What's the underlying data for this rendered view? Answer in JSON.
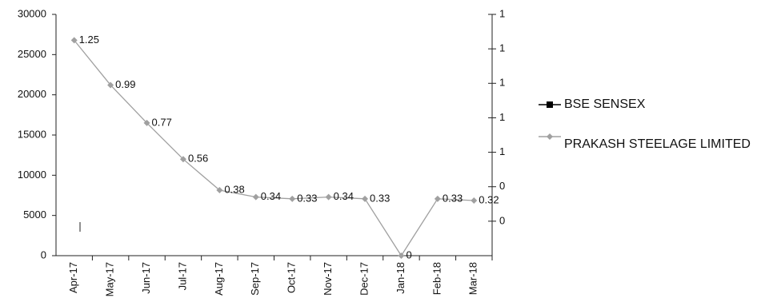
{
  "chart_data": {
    "type": "line",
    "categories": [
      "Apr-17",
      "May-17",
      "Jun-17",
      "Jul-17",
      "Aug-17",
      "Sep-17",
      "Oct-17",
      "Nov-17",
      "Dec-17",
      "Jan-18",
      "Feb-18",
      "Mar-18"
    ],
    "series": [
      {
        "name": "BSE SENSEX",
        "color": "#000000",
        "values": [
          null,
          null,
          null,
          null,
          null,
          null,
          null,
          null,
          null,
          null,
          null,
          null
        ]
      },
      {
        "name": "PRAKASH STEELAGE LIMITED",
        "color": "#a0a0a0",
        "axis": "y2",
        "values": [
          1.25,
          0.99,
          0.77,
          0.56,
          0.38,
          0.34,
          0.33,
          0.34,
          0.33,
          0,
          0.33,
          0.32
        ]
      }
    ],
    "ylim": [
      0,
      30000
    ],
    "yticks": [
      0,
      5000,
      10000,
      15000,
      20000,
      25000,
      30000
    ],
    "y2lim": [
      0,
      1.4
    ],
    "y2ticks": [
      {
        "value": 0.2,
        "label": "0"
      },
      {
        "value": 0.4,
        "label": "0"
      },
      {
        "value": 0.6,
        "label": "1"
      },
      {
        "value": 0.8,
        "label": "1"
      },
      {
        "value": 1.0,
        "label": "1"
      },
      {
        "value": 1.2,
        "label": "1"
      },
      {
        "value": 1.4,
        "label": "1"
      }
    ]
  }
}
